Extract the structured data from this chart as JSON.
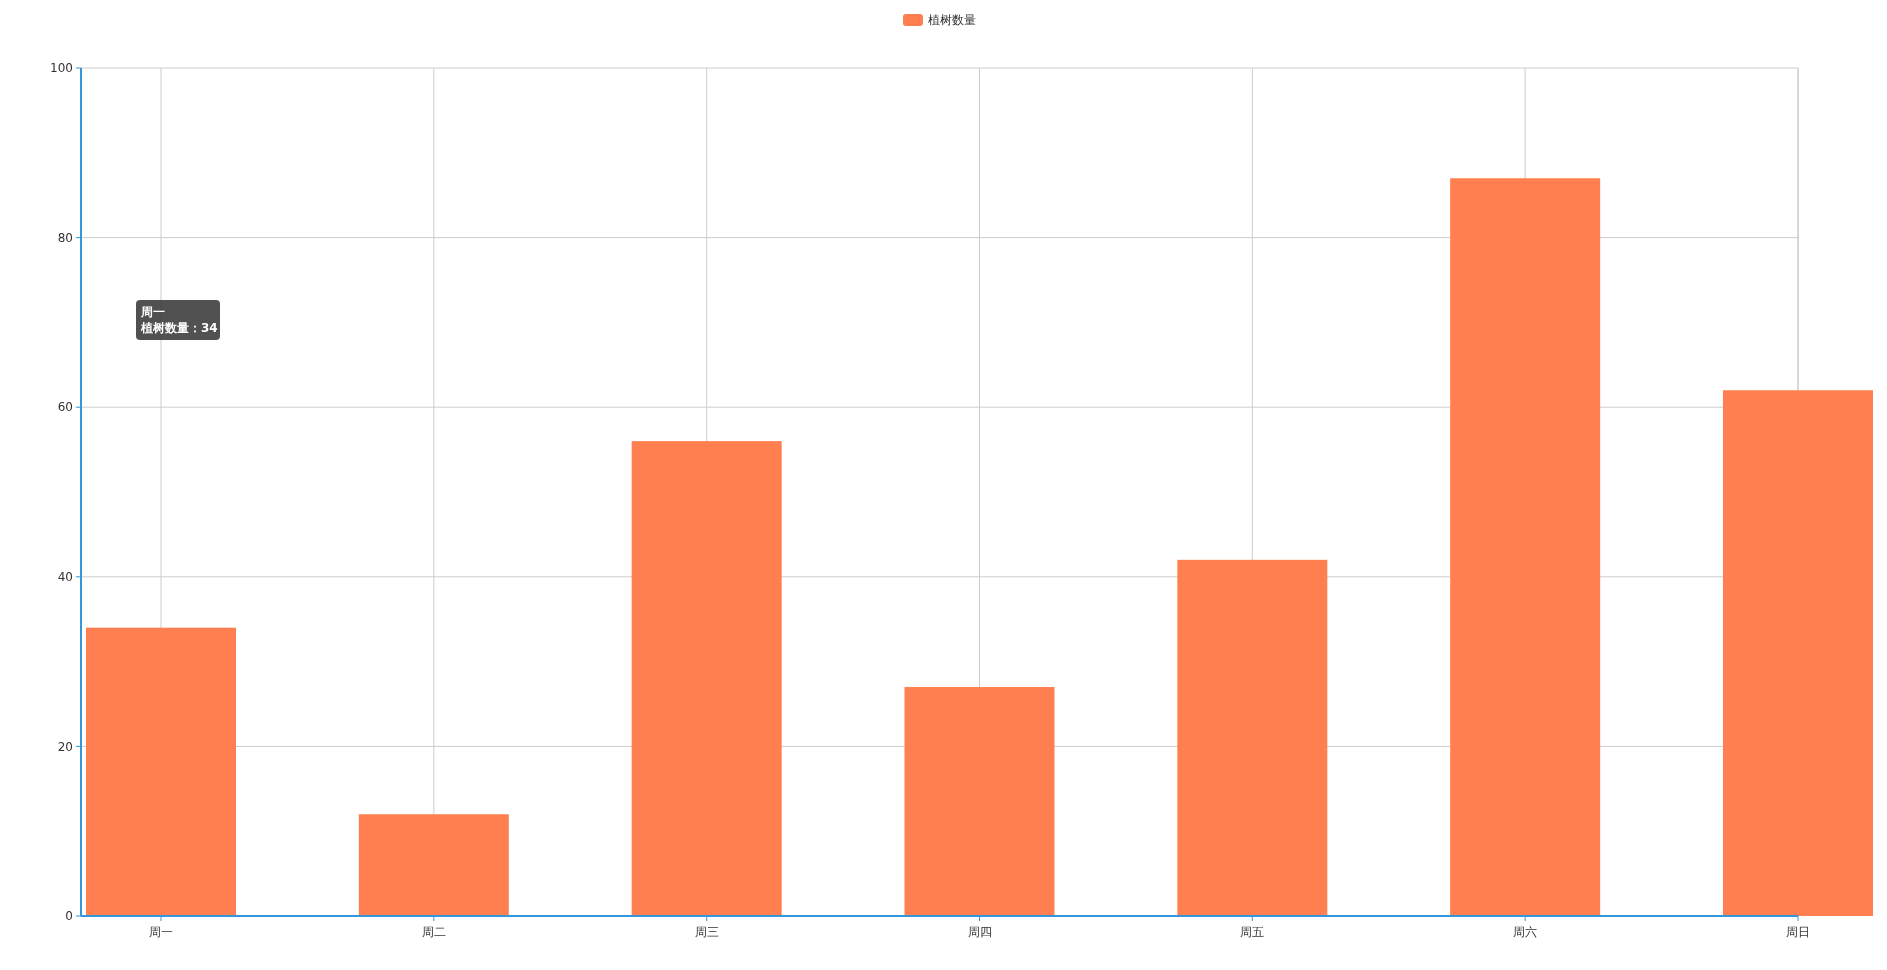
{
  "chart_data": {
    "type": "bar",
    "categories": [
      "周一",
      "周二",
      "周三",
      "周四",
      "周五",
      "周六",
      "周日"
    ],
    "series": [
      {
        "name": "植树数量",
        "color": "#ff7f50",
        "values": [
          34,
          12,
          56,
          27,
          42,
          87,
          62
        ]
      }
    ],
    "ylim": [
      0,
      100
    ],
    "yticks": [
      0,
      20,
      40,
      60,
      80,
      100
    ],
    "grid": true,
    "legend": "top",
    "annotations": [
      "周一",
      "植树数量：34"
    ]
  }
}
